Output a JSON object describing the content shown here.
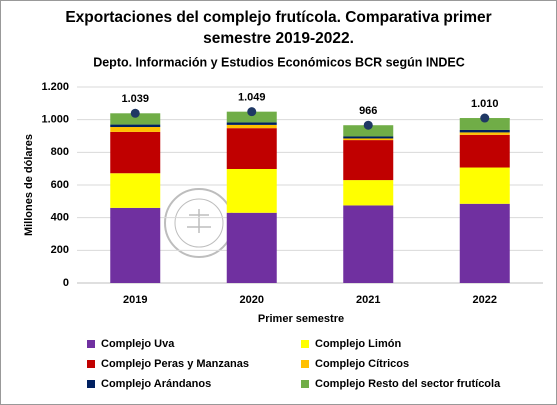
{
  "chart_data": {
    "type": "stacked-bar",
    "title": "Exportaciones del complejo frutícola. Comparativa primer semestre 2019-2022.",
    "subtitle": "Depto. Información y Estudios Económicos BCR según INDEC",
    "x_label": "Primer semestre",
    "y_label": "Millones de dólares",
    "categories": [
      "2019",
      "2020",
      "2021",
      "2022"
    ],
    "series": [
      {
        "name": "Complejo Uva",
        "color": "#7030a0",
        "values": [
          460,
          430,
          475,
          485
        ]
      },
      {
        "name": "Complejo Limón",
        "color": "#ffff00",
        "values": [
          212,
          268,
          155,
          222
        ]
      },
      {
        "name": "Complejo Peras y Manzanas",
        "color": "#c00000",
        "values": [
          253,
          250,
          245,
          200
        ]
      },
      {
        "name": "Complejo Cítricos",
        "color": "#ffc000",
        "values": [
          30,
          20,
          10,
          15
        ]
      },
      {
        "name": "Complejo Arándanos",
        "color": "#002060",
        "values": [
          15,
          15,
          12,
          15
        ]
      },
      {
        "name": "Complejo Resto del sector frutícola",
        "color": "#70ad47",
        "values": [
          69,
          66,
          69,
          73
        ]
      }
    ],
    "totals": {
      "color": "#1f3864",
      "values": [
        1039,
        1049,
        966,
        1010
      ],
      "value_labels": [
        "1.039",
        "1.049",
        "966",
        "1.010"
      ]
    },
    "ylim": [
      0,
      1200
    ],
    "yticks": [
      0,
      200,
      400,
      600,
      800,
      {
        "value": 1000,
        "label": "1.000"
      },
      {
        "value": 1200,
        "label": "1.200"
      }
    ],
    "grid": true
  }
}
